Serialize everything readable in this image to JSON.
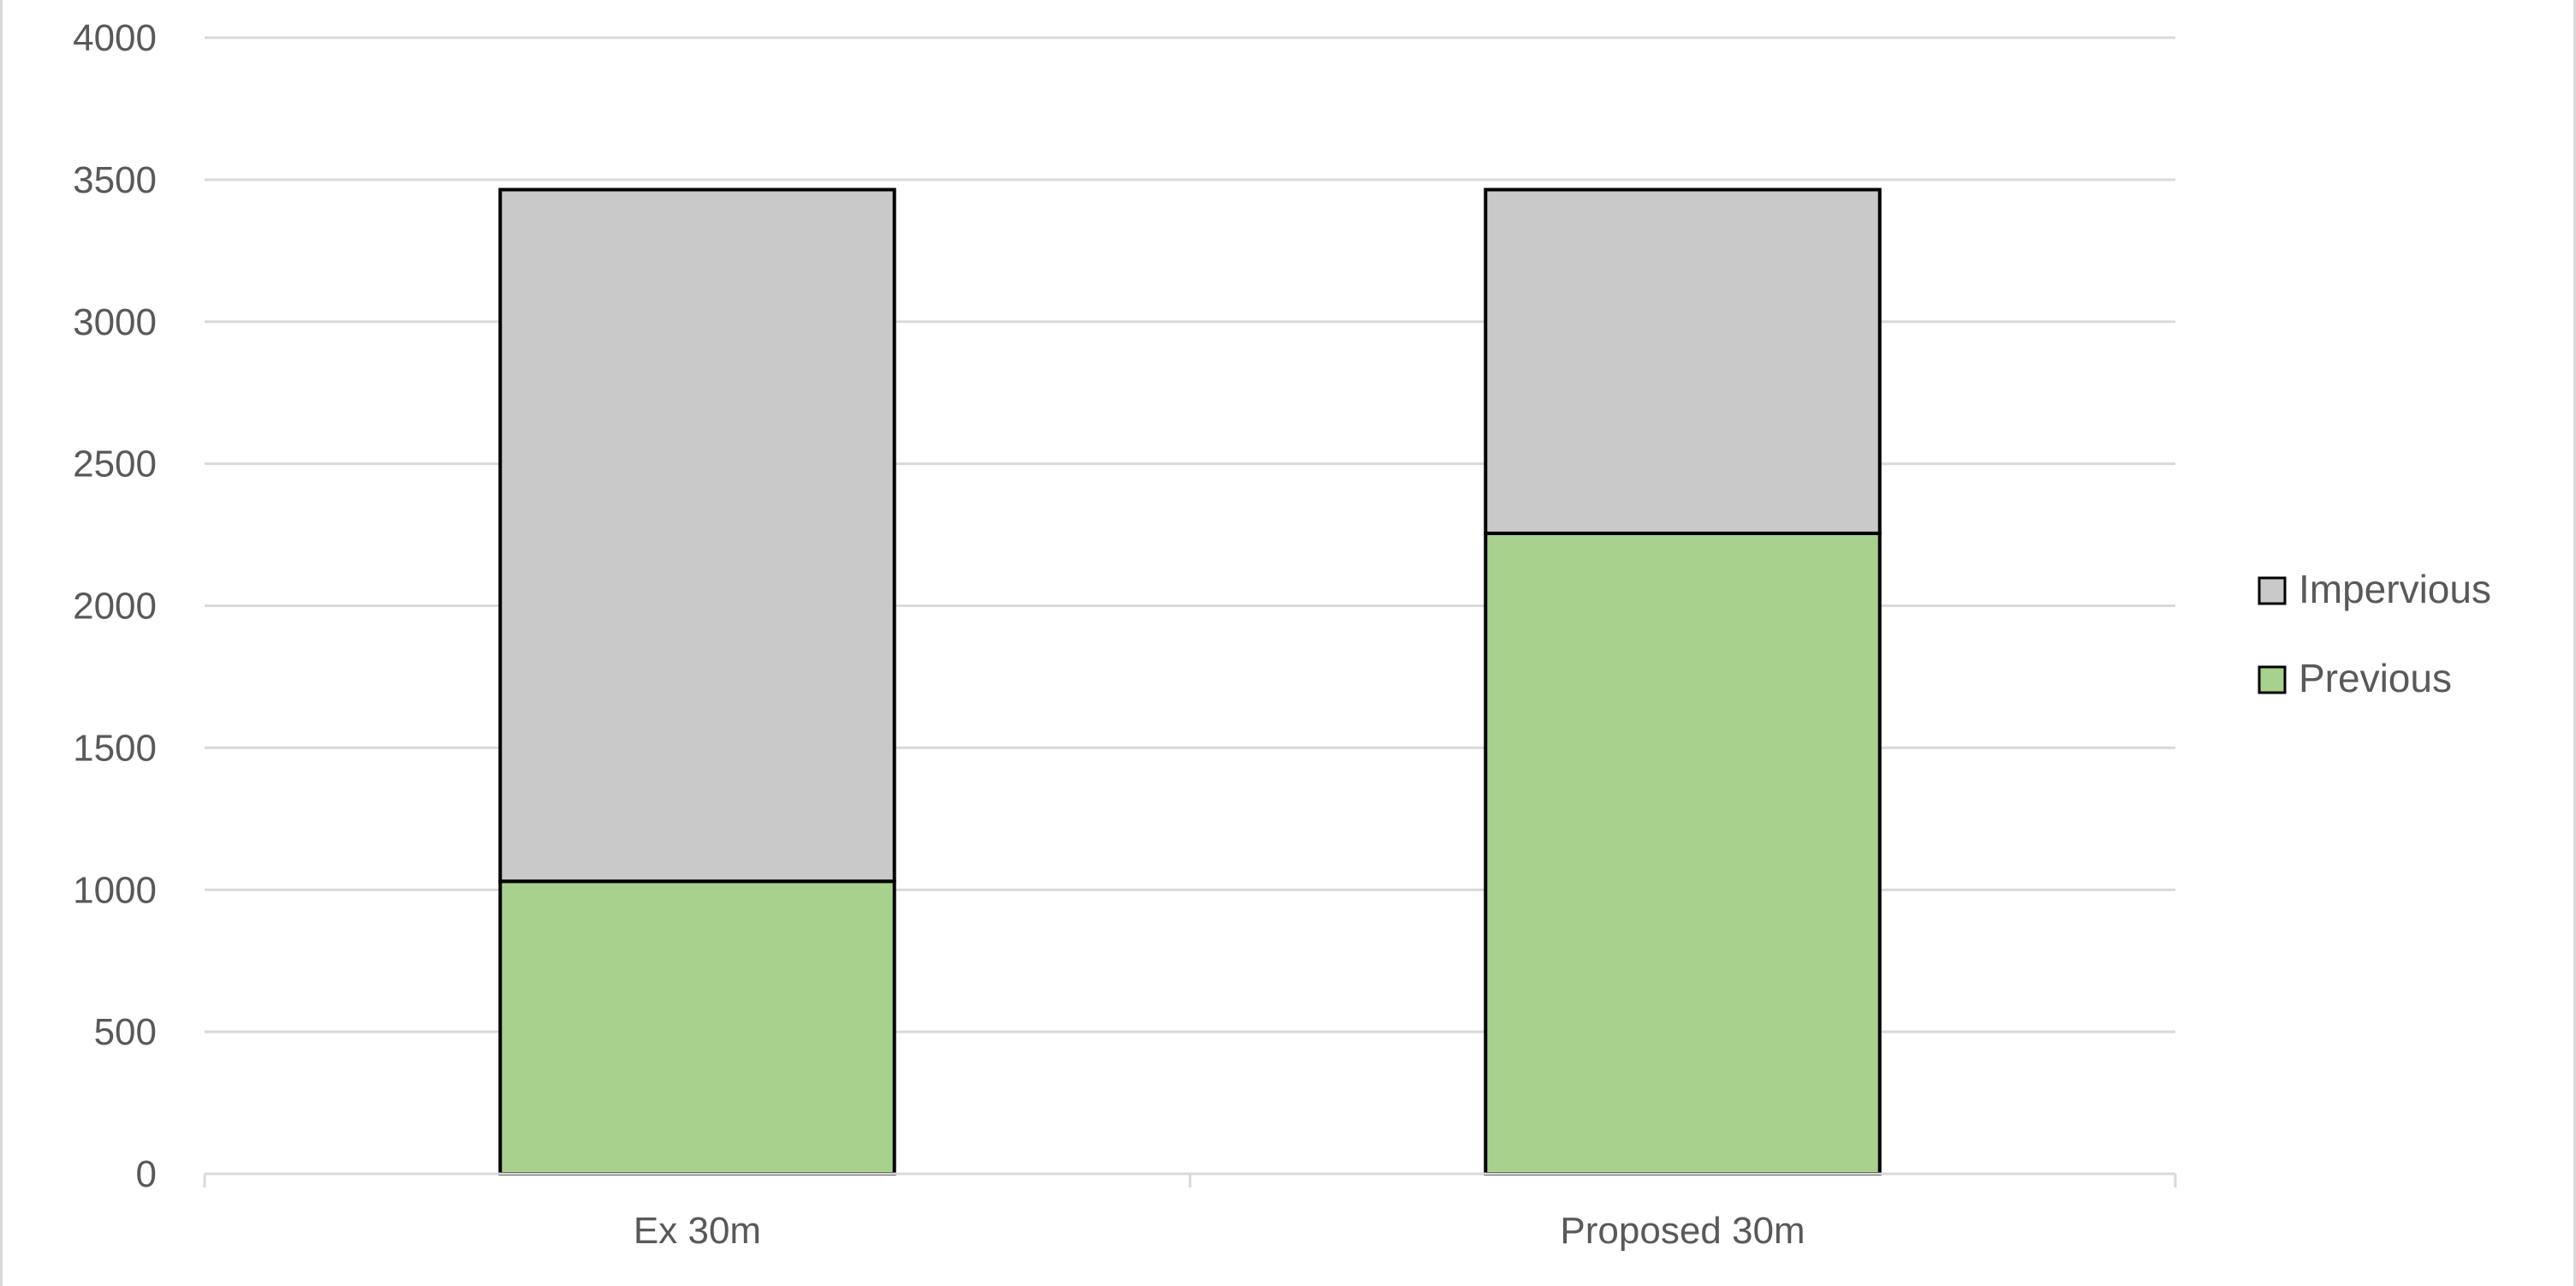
{
  "chart_data": {
    "type": "bar",
    "stacked": true,
    "categories": [
      "Ex 30m",
      "Proposed 30m"
    ],
    "series": [
      {
        "name": "Previous",
        "values": [
          1030,
          2255
        ],
        "color": "#a9d18e"
      },
      {
        "name": "Impervious",
        "values": [
          2435,
          1210
        ],
        "color": "#c9c9c9"
      }
    ],
    "legend_order": [
      "Impervious",
      "Previous"
    ],
    "y_ticks": [
      "0",
      "500",
      "1000",
      "1500",
      "2000",
      "2500",
      "3000",
      "3500",
      "4000"
    ],
    "ylim": [
      0,
      4000
    ],
    "title": "",
    "xlabel": "",
    "ylabel": "",
    "grid": true,
    "legend_position": "right",
    "bar_outline_color": "#000000",
    "gridline_color": "#d9d9d9",
    "text_color": "#595959"
  }
}
